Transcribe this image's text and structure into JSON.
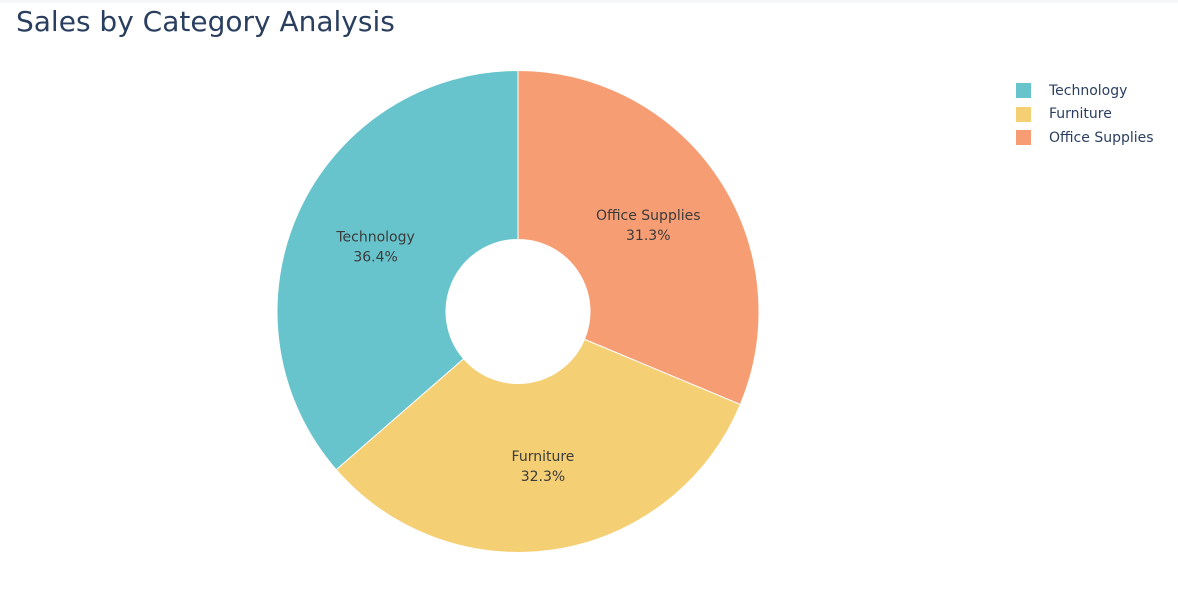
{
  "chart_data": {
    "type": "pie",
    "title": "Sales by Category Analysis",
    "hole": true,
    "labels": [
      "Technology",
      "Furniture",
      "Office Supplies"
    ],
    "values": [
      36.4,
      32.3,
      31.3
    ],
    "value_labels": [
      "36.4%",
      "32.3%",
      "31.3%"
    ],
    "colors": [
      "#68c4cc",
      "#f5cf73",
      "#f79d73"
    ],
    "legend_position": "top-right",
    "direction": "counterclockwise",
    "start": "top"
  }
}
